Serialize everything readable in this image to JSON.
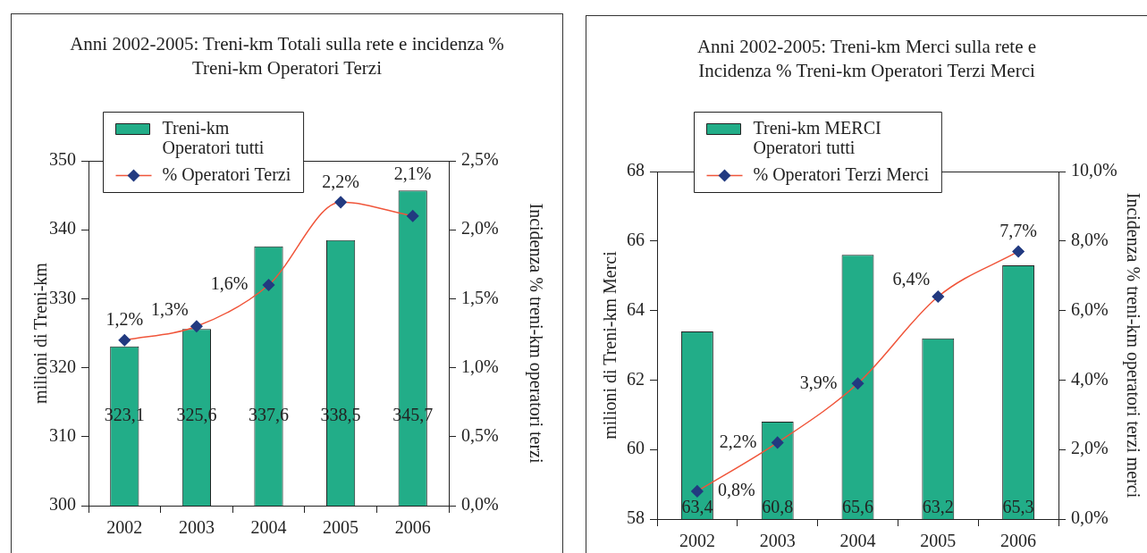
{
  "chart_data": [
    {
      "type": "bar",
      "title": "Anni 2002-2005: Treni-km Totali sulla rete e incidenza % Treni-km Operatori Terzi",
      "ylabel": "milioni di Treni-km",
      "y2label": "Incidenza % treni-km operatori terzi",
      "categories": [
        "2002",
        "2003",
        "2004",
        "2005",
        "2006"
      ],
      "series": [
        {
          "name": "Treni-km Operatori tutti",
          "color": "#22ad88",
          "values": [
            323.1,
            325.6,
            337.6,
            338.5,
            345.7
          ],
          "value_labels": [
            "323,1",
            "325,6",
            "337,6",
            "338,5",
            "345,7"
          ]
        },
        {
          "name": "% Operatori Terzi",
          "type": "line",
          "axis": "y2",
          "color": "#f0553a",
          "colors": [
            "#223a80",
            "#223a80",
            "#223a80",
            "#223a80",
            "#223a80"
          ],
          "values": [
            1.2,
            1.3,
            1.6,
            2.2,
            2.1
          ],
          "value_labels": [
            "1,2%",
            "1,3%",
            "1,6%",
            "2,2%",
            "2,1%"
          ]
        }
      ],
      "ylim": [
        300,
        350
      ],
      "yticks": [
        300,
        310,
        320,
        330,
        340,
        350
      ],
      "y2lim": [
        0,
        2.5
      ],
      "y2ticks": [
        {
          "value": 0,
          "label": "0,0%"
        },
        {
          "value": 0.5,
          "label": "0,5%"
        },
        {
          "value": 1,
          "label": "1,0%"
        },
        {
          "value": 1.5,
          "label": "1,5%"
        },
        {
          "value": 2,
          "label": "2,0%"
        },
        {
          "value": 2.5,
          "label": "2,5%"
        }
      ],
      "legend": "top left",
      "marker": "diamond"
    },
    {
      "type": "bar",
      "title": "Anni 2002-2005: Treni-km Merci sulla rete e Incidenza % Treni-km Operatori Terzi Merci",
      "ylabel": "milioni di Treni-km Merci",
      "y2label": "Incidenza % treni-km operatori terzi merci",
      "categories": [
        "2002",
        "2003",
        "2004",
        "2005",
        "2006"
      ],
      "series": [
        {
          "name": "Treni-km MERCI Operatori tutti",
          "color": "#22ad88",
          "values": [
            63.4,
            60.8,
            65.6,
            63.2,
            65.3
          ],
          "value_labels": [
            "63,4",
            "60,8",
            "65,6",
            "63,2",
            "65,3"
          ]
        },
        {
          "name": "% Operatori Terzi Merci",
          "type": "line",
          "axis": "y2",
          "color": "#f0553a",
          "colors": [
            "#223a80",
            "#223a80",
            "#223a80",
            "#223a80",
            "#223a80"
          ],
          "values": [
            0.8,
            2.2,
            3.9,
            6.4,
            7.7
          ],
          "value_labels": [
            "0,8%",
            "2,2%",
            "3,9%",
            "6,4%",
            "7,7%"
          ]
        }
      ],
      "ylim": [
        58,
        68
      ],
      "yticks": [
        58,
        60,
        62,
        64,
        66,
        68
      ],
      "y2lim": [
        0,
        10
      ],
      "y2ticks": [
        {
          "value": 0,
          "label": "0,0%"
        },
        {
          "value": 2,
          "label": "2,0%"
        },
        {
          "value": 4,
          "label": "4,0%"
        },
        {
          "value": 6,
          "label": "6,0%"
        },
        {
          "value": 8,
          "label": "8,0%"
        },
        {
          "value": 10,
          "label": "10,0%"
        }
      ],
      "legend": "top left",
      "marker": "diamond"
    }
  ]
}
